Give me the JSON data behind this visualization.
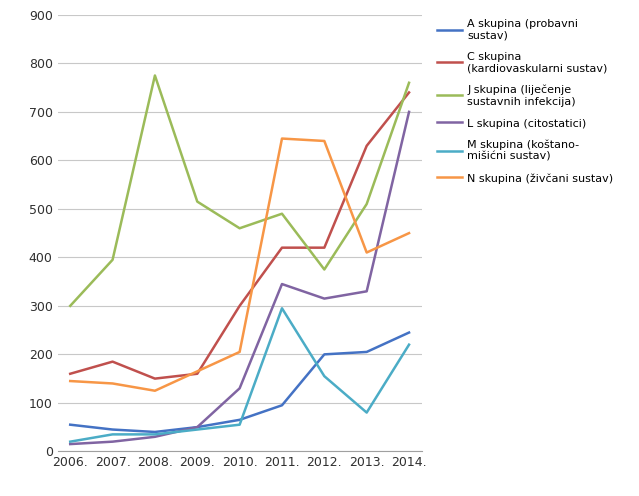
{
  "years": [
    2006,
    2007,
    2008,
    2009,
    2010,
    2011,
    2012,
    2013,
    2014
  ],
  "series": [
    {
      "label": "A skupina (probavni\nsustav)",
      "color": "#4472C4",
      "values": [
        55,
        45,
        40,
        50,
        65,
        95,
        200,
        205,
        245
      ]
    },
    {
      "label": "C skupina\n(kardiovaskularni sustav)",
      "color": "#C0504D",
      "values": [
        160,
        185,
        150,
        160,
        300,
        420,
        420,
        630,
        740
      ]
    },
    {
      "label": "J skupina (liječenje\nsustavnih infekcija)",
      "color": "#9BBB59",
      "values": [
        300,
        395,
        775,
        515,
        460,
        490,
        375,
        510,
        760
      ]
    },
    {
      "label": "L skupina (citostatici)",
      "color": "#8064A2",
      "values": [
        15,
        20,
        30,
        50,
        130,
        345,
        315,
        330,
        700
      ]
    },
    {
      "label": "M skupina (koštano-\nmišićni sustav)",
      "color": "#4BACC6",
      "values": [
        20,
        35,
        35,
        45,
        55,
        295,
        155,
        80,
        220
      ]
    },
    {
      "label": "N skupina (živčani sustav)",
      "color": "#F79646",
      "values": [
        145,
        140,
        125,
        165,
        205,
        645,
        640,
        410,
        450
      ]
    }
  ],
  "ylim": [
    0,
    900
  ],
  "yticks": [
    0,
    100,
    200,
    300,
    400,
    500,
    600,
    700,
    800,
    900
  ],
  "xlabel": "",
  "ylabel": "",
  "background_color": "#ffffff",
  "grid_color": "#c8c8c8",
  "year_labels": [
    "2006.",
    "2007.",
    "2008.",
    "2009.",
    "2010.",
    "2011.",
    "2012.",
    "2013.",
    "2014."
  ],
  "figsize": [
    6.39,
    4.96
  ],
  "dpi": 100,
  "legend_fontsize": 8.0,
  "tick_fontsize": 9,
  "linewidth": 1.8
}
